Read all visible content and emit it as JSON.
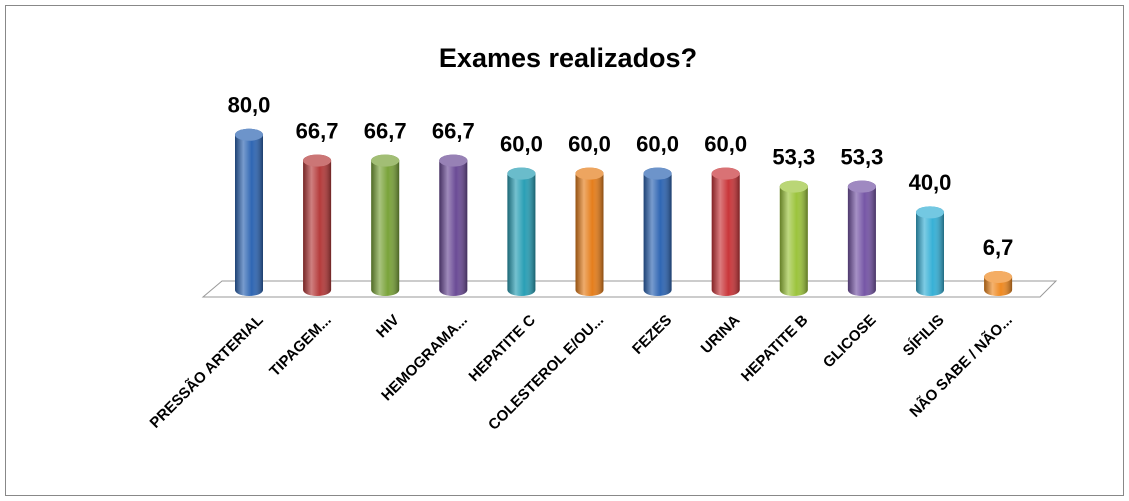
{
  "chart_data": {
    "type": "bar",
    "title": "Exames realizados?",
    "categories": [
      "PRESSÃO ARTERIAL",
      "TIPAGEM...",
      "HIV",
      "HEMOGRAMA...",
      "HEPATITE C",
      "COLESTEROL E/OU...",
      "FEZES",
      "URINA",
      "HEPATITE B",
      "GLICOSE",
      "SÍFILIS",
      "NÃO SABE / NÃO..."
    ],
    "values": [
      80,
      66.7,
      66.7,
      66.7,
      60,
      60,
      60,
      60,
      53.3,
      53.3,
      40,
      6.7
    ],
    "value_labels": [
      "80,0",
      "66,7",
      "66,7",
      "66,7",
      "60,0",
      "60,0",
      "60,0",
      "60,0",
      "53,3",
      "53,3",
      "40,0",
      "6,7"
    ],
    "colors": [
      "#2f66b3",
      "#b53b3b",
      "#7aa33a",
      "#6b4b96",
      "#2a9fb5",
      "#e57e1c",
      "#2f66b3",
      "#c9363a",
      "#9cc43c",
      "#7656a6",
      "#37b0d6",
      "#ef8a22"
    ]
  }
}
